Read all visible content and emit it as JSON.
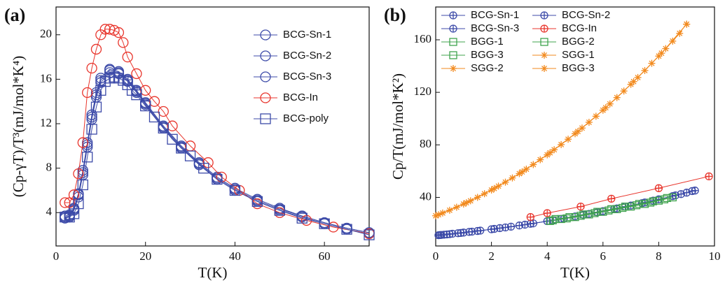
{
  "chart_data": [
    {
      "type": "scatter",
      "label": "(a)",
      "xlabel": "T(K)",
      "ylabel": "(Cp-γT)/T³(mJ/mol*K⁴)",
      "xlim": [
        0,
        70
      ],
      "xticks": [
        0,
        20,
        40,
        60
      ],
      "ylim": [
        1,
        22.5
      ],
      "yticks": [
        4,
        8,
        12,
        16,
        20
      ],
      "legend": {
        "position": "upper right",
        "columns": 1
      },
      "series": [
        {
          "name": "BCG-Sn-1",
          "color": "#3c4aa8",
          "marker": "circle",
          "x": [
            2,
            3,
            4,
            5,
            6,
            7,
            8,
            9,
            10,
            12,
            14,
            16,
            18,
            20,
            24,
            28,
            32,
            36,
            40,
            45,
            50,
            55,
            60,
            65,
            70
          ],
          "values": [
            3.6,
            3.7,
            4.3,
            5.6,
            7.6,
            10.1,
            12.6,
            14.6,
            15.9,
            16.8,
            16.6,
            15.9,
            14.9,
            13.8,
            11.7,
            9.9,
            8.4,
            7.1,
            6.1,
            5.1,
            4.3,
            3.7,
            3.1,
            2.6,
            2.2
          ]
        },
        {
          "name": "BCG-Sn-2",
          "color": "#3c4aa8",
          "marker": "circle",
          "x": [
            2,
            3,
            4,
            5,
            6,
            7,
            8,
            9,
            10,
            12,
            14,
            16,
            18,
            20,
            24,
            28,
            32,
            36,
            40,
            45,
            50,
            55,
            60,
            65,
            70
          ],
          "values": [
            3.7,
            3.8,
            4.4,
            5.7,
            7.8,
            10.3,
            12.8,
            14.8,
            16.1,
            16.9,
            16.7,
            16.0,
            15.0,
            13.9,
            11.8,
            10.0,
            8.5,
            7.2,
            6.2,
            5.2,
            4.4,
            3.7,
            3.1,
            2.6,
            2.2
          ]
        },
        {
          "name": "BCG-Sn-3",
          "color": "#3c4aa8",
          "marker": "circle",
          "x": [
            2,
            3,
            4,
            5,
            6,
            7,
            8,
            9,
            10,
            12,
            14,
            16,
            18,
            20,
            24,
            28,
            32,
            36,
            40,
            45,
            50,
            55,
            60,
            65,
            70
          ],
          "values": [
            3.5,
            3.6,
            4.2,
            5.4,
            7.4,
            9.9,
            12.4,
            14.4,
            15.7,
            16.6,
            16.5,
            15.8,
            14.8,
            13.7,
            11.6,
            9.8,
            8.3,
            7.0,
            6.0,
            5.0,
            4.2,
            3.6,
            3.0,
            2.5,
            2.1
          ]
        },
        {
          "name": "BCG-In",
          "color": "#e8352c",
          "marker": "circle",
          "x": [
            2,
            3,
            4,
            5,
            6,
            7,
            8,
            9,
            10,
            11,
            12,
            13,
            14,
            15,
            16,
            18,
            20,
            22,
            24,
            26,
            30,
            34,
            37,
            41,
            45,
            50,
            56,
            62,
            70
          ],
          "values": [
            4.9,
            4.9,
            5.6,
            7.5,
            10.3,
            14.8,
            17.0,
            18.7,
            20.0,
            20.5,
            20.5,
            20.4,
            20.2,
            19.3,
            18.0,
            16.5,
            15.0,
            14.0,
            13.1,
            11.8,
            10.0,
            8.5,
            7.2,
            6.0,
            4.8,
            4.0,
            3.3,
            2.7,
            2.1
          ]
        },
        {
          "name": "BCG-poly",
          "color": "#3c4aa8",
          "marker": "square",
          "x": [
            2,
            3,
            4,
            5,
            6,
            7,
            8,
            9,
            10,
            11,
            12,
            13,
            14,
            15,
            16,
            17,
            18,
            20,
            22,
            24,
            26,
            28,
            30,
            33,
            36,
            40,
            45,
            50,
            55,
            60,
            65,
            70
          ],
          "values": [
            3.6,
            3.6,
            3.9,
            4.8,
            6.5,
            9,
            11.5,
            13.5,
            15,
            15.8,
            16.1,
            16.2,
            16.1,
            15.9,
            15.5,
            15.0,
            14.6,
            13.6,
            12.6,
            11.6,
            10.6,
            9.8,
            9.1,
            8.0,
            7.0,
            6.0,
            5.0,
            4.2,
            3.5,
            3.0,
            2.5,
            2.0
          ]
        }
      ]
    },
    {
      "type": "scatter",
      "label": "(b)",
      "xlabel": "T(K)",
      "ylabel": "Cp/T(mJ/mol*K²)",
      "xlim": [
        0,
        10
      ],
      "xticks": [
        0,
        2,
        4,
        6,
        8,
        10
      ],
      "ylim": [
        3,
        185
      ],
      "yticks": [
        40,
        80,
        120,
        160
      ],
      "legend": {
        "position": "upper left",
        "columns": 2
      },
      "series": [
        {
          "name": "BCG-Sn-1",
          "color": "#3c4aa8",
          "marker": "circle-cross",
          "x": [
            0.1,
            0.3,
            0.5,
            0.8,
            1,
            1.3,
            1.6,
            2,
            2.3,
            2.7,
            3,
            3.5,
            4,
            4.5,
            5,
            5.5,
            6,
            6.5,
            7,
            7.5,
            8,
            8.5,
            9,
            9.3
          ],
          "values": [
            11.2,
            11.6,
            12.0,
            12.7,
            13.2,
            13.9,
            14.7,
            15.7,
            16.6,
            17.7,
            18.6,
            20.2,
            21.9,
            23.6,
            25.5,
            27.4,
            29.5,
            31.6,
            33.8,
            36.1,
            38.5,
            41.0,
            43.6,
            45.2
          ]
        },
        {
          "name": "BCG-Sn-2",
          "color": "#3c4aa8",
          "marker": "circle-cross",
          "x": [
            0.2,
            0.6,
            1.2,
            2.1,
            3.2,
            4.2,
            5.3,
            6.4,
            7.4,
            8.6,
            9.2
          ],
          "values": [
            11.4,
            12.3,
            13.7,
            16.0,
            19.2,
            22.6,
            26.7,
            31.2,
            35.6,
            41.5,
            44.8
          ]
        },
        {
          "name": "BCG-Sn-3",
          "color": "#3c4aa8",
          "marker": "circle-cross",
          "x": [
            0.15,
            0.4,
            0.9,
            1.5,
            2.5,
            3.4,
            4.6,
            5.8,
            6.8,
            7.8,
            8.8
          ],
          "values": [
            11.3,
            11.8,
            12.9,
            14.4,
            17.1,
            19.9,
            23.9,
            28.7,
            33.0,
            37.5,
            42.5
          ]
        },
        {
          "name": "BCG-In",
          "color": "#e8352c",
          "marker": "circle-cross",
          "x": [
            3.4,
            4.0,
            5.2,
            6.3,
            8.0,
            9.8
          ],
          "values": [
            25,
            28,
            33,
            39,
            47,
            56
          ]
        },
        {
          "name": "BGG-1",
          "color": "#3fa34d",
          "marker": "square",
          "x": [
            4.1,
            4.5,
            5,
            5.5,
            6,
            6.5,
            7,
            7.5,
            8,
            8.5
          ],
          "values": [
            22,
            23.5,
            25,
            27,
            29,
            31,
            33,
            35,
            37.5,
            40
          ]
        },
        {
          "name": "BGG-2",
          "color": "#3fa34d",
          "marker": "square",
          "x": [
            4.3,
            4.8,
            5.3,
            5.8,
            6.3,
            6.8,
            7.3,
            7.8,
            8.3
          ],
          "values": [
            23.5,
            25,
            27,
            29,
            31,
            33,
            35,
            37,
            39.5
          ]
        },
        {
          "name": "BGG-3",
          "color": "#3fa34d",
          "marker": "square",
          "x": [
            4.2,
            4.7,
            5.2,
            5.7,
            6.2,
            6.7,
            7.2,
            7.7,
            8.2
          ],
          "values": [
            22.5,
            24,
            26,
            28,
            30,
            32,
            34,
            36,
            38.5
          ]
        },
        {
          "name": "SGG-1",
          "color": "#f28a1e",
          "marker": "star",
          "x": [
            0,
            0.5,
            1,
            1.5,
            2,
            2.5,
            3,
            3.5,
            4,
            4.5,
            5,
            5.5,
            6,
            6.5,
            7,
            7.5,
            8,
            8.5,
            9
          ],
          "values": [
            26,
            30.2,
            34.9,
            40.0,
            45.6,
            51.6,
            58.1,
            65.0,
            72.4,
            80.2,
            88.5,
            97.2,
            106.4,
            116.0,
            126.1,
            136.6,
            147.6,
            159.0,
            171.9
          ]
        },
        {
          "name": "SGG-2",
          "color": "#f28a1e",
          "marker": "star",
          "x": [
            0.25,
            0.75,
            1.25,
            1.75,
            2.25,
            2.75,
            3.25,
            3.75,
            4.25,
            4.75,
            5.25,
            5.75,
            6.25,
            6.75,
            7.25,
            7.75,
            8.25,
            8.75
          ],
          "values": [
            28.1,
            32.5,
            37.4,
            42.8,
            48.6,
            54.8,
            61.5,
            68.7,
            76.3,
            84.3,
            92.8,
            101.8,
            111.2,
            121.0,
            131.3,
            142.1,
            153.3,
            164.9
          ]
        },
        {
          "name": "BGG-3",
          "color": "#f28a1e",
          "marker": "star",
          "x": [
            0.1,
            1.1,
            2.1,
            3.1,
            4.1,
            5.1,
            6.1,
            7.1,
            8.1,
            9.0
          ],
          "values": [
            26.8,
            35.9,
            46.8,
            59.4,
            74.0,
            90.2,
            108.3,
            128.2,
            149.8,
            171.9
          ]
        }
      ]
    }
  ]
}
